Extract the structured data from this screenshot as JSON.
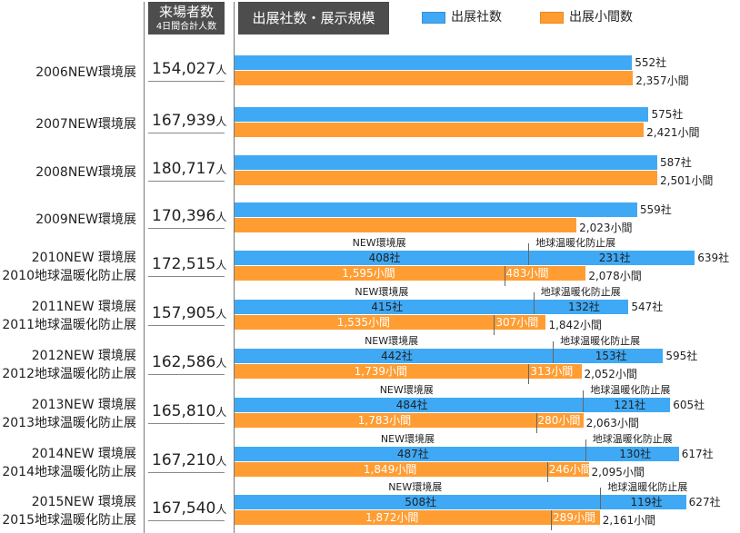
{
  "header": {
    "visitors_title": "来場者数",
    "visitors_sub": "4日間合計人数",
    "scale_title": "出展社数・展示規模",
    "visitor_unit": "人"
  },
  "colors": {
    "companies": "#3fa9f5",
    "booths": "#ff9d33"
  },
  "chart_data": {
    "type": "bar",
    "orientation": "horizontal",
    "legend": [
      "出展社数",
      "出展小間数"
    ],
    "legend_position": "top",
    "company_suffix": "社",
    "booth_suffix": "小間",
    "sub_labels": [
      "NEW環境展",
      "地球温暖化防止展"
    ],
    "rows": [
      {
        "label1": "2006NEW環境展",
        "label2": "",
        "visitors": "154,027",
        "companies": 552,
        "booths": 2357,
        "companies_text": "552社",
        "booths_text": "2,357小間"
      },
      {
        "label1": "2007NEW環境展",
        "label2": "",
        "visitors": "167,939",
        "companies": 575,
        "booths": 2421,
        "companies_text": "575社",
        "booths_text": "2,421小間"
      },
      {
        "label1": "2008NEW環境展",
        "label2": "",
        "visitors": "180,717",
        "companies": 587,
        "booths": 2501,
        "companies_text": "587社",
        "booths_text": "2,501小間"
      },
      {
        "label1": "2009NEW環境展",
        "label2": "",
        "visitors": "170,396",
        "companies": 559,
        "booths": 2023,
        "companies_text": "559社",
        "booths_text": "2,023小間"
      },
      {
        "label1": "2010NEW 環境展",
        "label2": "2010地球温暖化防止展",
        "visitors": "172,515",
        "companies": 639,
        "booths": 2078,
        "companies_text": "639社",
        "booths_text": "2,078小間",
        "new_companies": 408,
        "gw_companies": 231,
        "new_booths": 1595,
        "gw_booths": 483,
        "new_companies_text": "408社",
        "gw_companies_text": "231社",
        "new_booths_text": "1,595小間",
        "gw_booths_text": "483小間"
      },
      {
        "label1": "2011NEW 環境展",
        "label2": "2011地球温暖化防止展",
        "visitors": "157,905",
        "companies": 547,
        "booths": 1842,
        "companies_text": "547社",
        "booths_text": "1,842小間",
        "new_companies": 415,
        "gw_companies": 132,
        "new_booths": 1535,
        "gw_booths": 307,
        "new_companies_text": "415社",
        "gw_companies_text": "132社",
        "new_booths_text": "1,535小間",
        "gw_booths_text": "307小間"
      },
      {
        "label1": "2012NEW 環境展",
        "label2": "2012地球温暖化防止展",
        "visitors": "162,586",
        "companies": 595,
        "booths": 2052,
        "companies_text": "595社",
        "booths_text": "2,052小間",
        "new_companies": 442,
        "gw_companies": 153,
        "new_booths": 1739,
        "gw_booths": 313,
        "new_companies_text": "442社",
        "gw_companies_text": "153社",
        "new_booths_text": "1,739小間",
        "gw_booths_text": "313小間"
      },
      {
        "label1": "2013NEW 環境展",
        "label2": "2013地球温暖化防止展",
        "visitors": "165,810",
        "companies": 605,
        "booths": 2063,
        "companies_text": "605社",
        "booths_text": "2,063小間",
        "new_companies": 484,
        "gw_companies": 121,
        "new_booths": 1783,
        "gw_booths": 280,
        "new_companies_text": "484社",
        "gw_companies_text": "121社",
        "new_booths_text": "1,783小間",
        "gw_booths_text": "280小間"
      },
      {
        "label1": "2014NEW 環境展",
        "label2": "2014地球温暖化防止展",
        "visitors": "167,210",
        "companies": 617,
        "booths": 2095,
        "companies_text": "617社",
        "booths_text": "2,095小間",
        "new_companies": 487,
        "gw_companies": 130,
        "new_booths": 1849,
        "gw_booths": 246,
        "new_companies_text": "487社",
        "gw_companies_text": "130社",
        "new_booths_text": "1,849小間",
        "gw_booths_text": "246小間"
      },
      {
        "label1": "2015NEW 環境展",
        "label2": "2015地球温暖化防止展",
        "visitors": "167,540",
        "companies": 627,
        "booths": 2161,
        "companies_text": "627社",
        "booths_text": "2,161小間",
        "new_companies": 508,
        "gw_companies": 119,
        "new_booths": 1872,
        "gw_booths": 289,
        "new_companies_text": "508社",
        "gw_companies_text": "119社",
        "new_booths_text": "1,872小間",
        "gw_booths_text": "289小間"
      }
    ]
  }
}
